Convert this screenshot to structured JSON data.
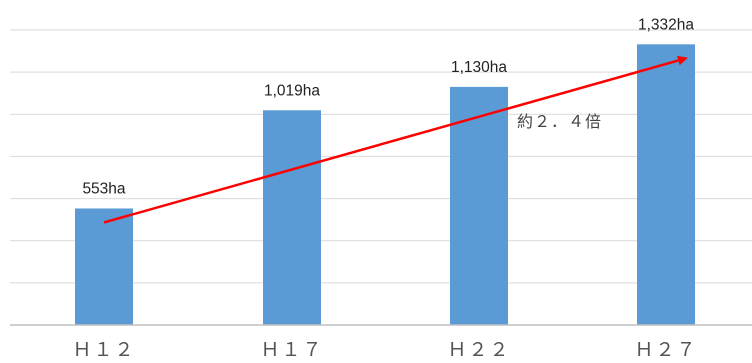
{
  "chart_data": {
    "type": "bar",
    "title": "",
    "xlabel": "",
    "ylabel": "",
    "categories": [
      "Ｈ１２",
      "Ｈ１７",
      "Ｈ２２",
      "Ｈ２７"
    ],
    "values": [
      553,
      1019,
      1130,
      1332
    ],
    "data_labels": [
      "553ha",
      "1,019ha",
      "1,130ha",
      "1,332ha"
    ],
    "ylim": [
      0,
      1400
    ],
    "grid": true,
    "legend": "none",
    "bar_color": "#5B9BD5",
    "trend_arrow": {
      "from_category_index": 0,
      "to_category_index": 3,
      "label": "約２．４倍",
      "color": "#FF0000"
    }
  }
}
